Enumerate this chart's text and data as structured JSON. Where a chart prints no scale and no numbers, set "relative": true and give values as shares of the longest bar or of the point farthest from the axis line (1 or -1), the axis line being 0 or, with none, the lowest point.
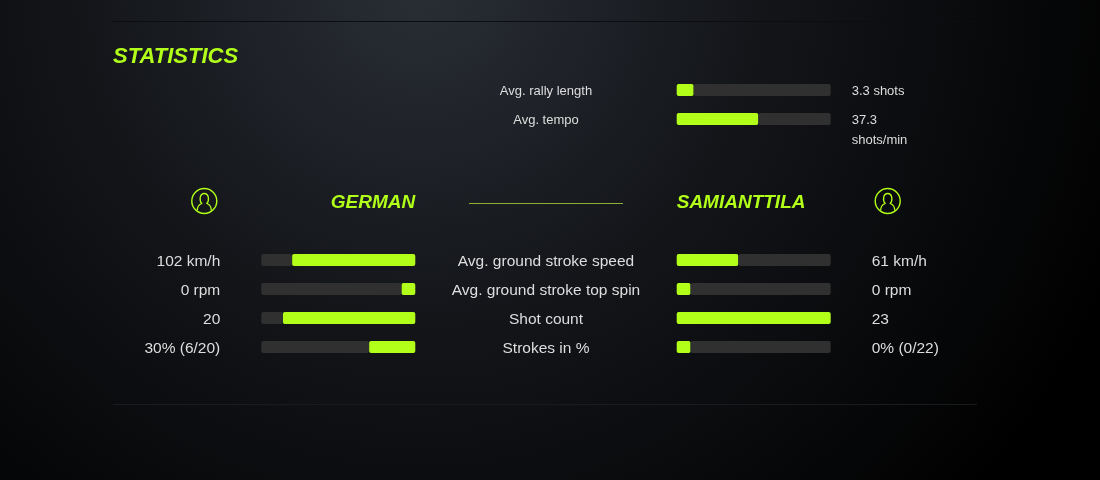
{
  "chart_data": [
    {
      "type": "bar",
      "orientation": "horizontal",
      "relative": true,
      "stacked": true,
      "categories": [
        "Avg. rally length",
        "Avg. tempo"
      ],
      "series": [
        {
          "color": "#b2ff19",
          "values": [
            0.11,
            0.53
          ]
        },
        {
          "color": "#303030",
          "values": [
            0.89,
            0.47
          ]
        }
      ],
      "annotations": [
        "3.3 shots",
        "37.3 shots/min"
      ]
    },
    {
      "type": "bar",
      "orientation": "horizontal",
      "relative": true,
      "stacked": true,
      "title": "STATISTICS",
      "tick_labels": false,
      "categories": [
        "Avg. ground stroke speed",
        "Avg. ground stroke top spin",
        "Shot count",
        "Strokes in %"
      ],
      "series": [
        {
          "name": "GERMAN",
          "color": "#b2ff19",
          "values": [
            0.8,
            0.09,
            0.86,
            0.3
          ]
        },
        {
          "color": "#303030",
          "values": [
            0.2,
            0.91,
            0.14,
            0.7
          ]
        }
      ],
      "annotations": [
        "102 km/h",
        "0 rpm",
        "20",
        "30% (6/20)"
      ]
    },
    {
      "type": "bar",
      "orientation": "horizontal",
      "relative": true,
      "stacked": true,
      "categories": [
        "Avg. ground stroke speed",
        "Avg. ground stroke top spin",
        "Shot count",
        "Strokes in %"
      ],
      "series": [
        {
          "name": "SAMIANTTILA",
          "color": "#b2ff19",
          "values": [
            0.4,
            0.09,
            1,
            0.09
          ]
        },
        {
          "color": "#303030",
          "values": [
            0.6,
            0.91,
            0,
            0.91
          ]
        }
      ],
      "annotations": [
        "61 km/h",
        "0 rpm",
        "23",
        "0% (0/22)"
      ]
    }
  ]
}
